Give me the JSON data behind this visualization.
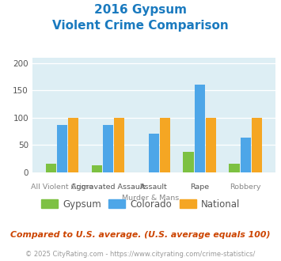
{
  "title_line1": "2016 Gypsum",
  "title_line2": "Violent Crime Comparison",
  "title_color": "#1a7abf",
  "gypsum_values": [
    15,
    13,
    0,
    37,
    15
  ],
  "colorado_values": [
    87,
    86,
    70,
    160,
    64
  ],
  "national_values": [
    100,
    100,
    100,
    100,
    100
  ],
  "gypsum_color": "#7dc142",
  "colorado_color": "#4da6e8",
  "national_color": "#f5a623",
  "bg_color": "#ddeef4",
  "ylim": [
    0,
    210
  ],
  "yticks": [
    0,
    50,
    100,
    150,
    200
  ],
  "legend_labels": [
    "Gypsum",
    "Colorado",
    "National"
  ],
  "top_labels": [
    "",
    "Aggravated Assault",
    "Assault",
    "Rape",
    ""
  ],
  "bottom_labels": [
    "All Violent Crime",
    "",
    "Murder & Mans...",
    "",
    "Robbery"
  ],
  "footnote1": "Compared to U.S. average. (U.S. average equals 100)",
  "footnote2": "© 2025 CityRating.com - https://www.cityrating.com/crime-statistics/",
  "footnote1_color": "#cc4400",
  "footnote2_color": "#999999"
}
